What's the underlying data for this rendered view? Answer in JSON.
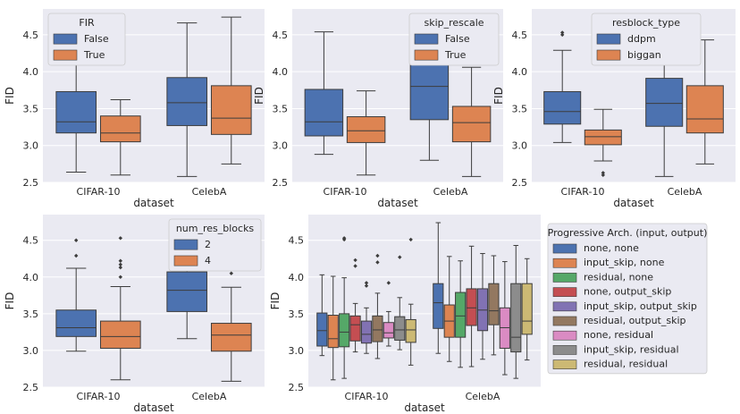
{
  "colors": {
    "blue": "#4c72b0",
    "orange": "#dd8452",
    "green": "#55a868",
    "red": "#c44e52",
    "purple": "#8172b3",
    "brown": "#937860",
    "pink": "#da8bc3",
    "gray": "#8c8c8c",
    "olive": "#ccb974"
  },
  "chart_data": [
    {
      "type": "box",
      "xlabel": "dataset",
      "ylabel": "FID",
      "ylim": [
        2.5,
        4.85
      ],
      "yticks": [
        "2.5",
        "3.0",
        "3.5",
        "4.0",
        "4.5"
      ],
      "categories": [
        "CIFAR-10",
        "CelebA"
      ],
      "legend": {
        "title": "FIR",
        "placement": "upper-left"
      },
      "series": [
        {
          "name": "False",
          "color": "blue",
          "boxes": [
            {
              "whislo": 2.64,
              "q1": 3.17,
              "med": 3.32,
              "q3": 3.73,
              "whishi": 4.64,
              "fliers": []
            },
            {
              "whislo": 2.58,
              "q1": 3.27,
              "med": 3.58,
              "q3": 3.92,
              "whishi": 4.66,
              "fliers": []
            }
          ]
        },
        {
          "name": "True",
          "color": "orange",
          "boxes": [
            {
              "whislo": 2.6,
              "q1": 3.05,
              "med": 3.17,
              "q3": 3.4,
              "whishi": 3.62,
              "fliers": [
                4.17
              ]
            },
            {
              "whislo": 2.75,
              "q1": 3.15,
              "med": 3.37,
              "q3": 3.81,
              "whishi": 4.74,
              "fliers": []
            }
          ]
        }
      ]
    },
    {
      "type": "box",
      "xlabel": "dataset",
      "ylabel": "FID",
      "ylim": [
        2.5,
        4.85
      ],
      "yticks": [
        "2.5",
        "3.0",
        "3.5",
        "4.0",
        "4.5"
      ],
      "categories": [
        "CIFAR-10",
        "CelebA"
      ],
      "legend": {
        "title": "skip_rescale",
        "placement": "upper-right"
      },
      "series": [
        {
          "name": "False",
          "color": "blue",
          "boxes": [
            {
              "whislo": 2.88,
              "q1": 3.13,
              "med": 3.32,
              "q3": 3.76,
              "whishi": 4.54,
              "fliers": []
            },
            {
              "whislo": 2.8,
              "q1": 3.35,
              "med": 3.8,
              "q3": 4.1,
              "whishi": 4.74,
              "fliers": []
            }
          ]
        },
        {
          "name": "True",
          "color": "orange",
          "boxes": [
            {
              "whislo": 2.6,
              "q1": 3.04,
              "med": 3.2,
              "q3": 3.39,
              "whishi": 3.74,
              "fliers": []
            },
            {
              "whislo": 2.58,
              "q1": 3.05,
              "med": 3.31,
              "q3": 3.53,
              "whishi": 4.06,
              "fliers": []
            }
          ]
        }
      ]
    },
    {
      "type": "box",
      "xlabel": "dataset",
      "ylabel": "FID",
      "ylim": [
        2.5,
        4.85
      ],
      "yticks": [
        "2.5",
        "3.0",
        "3.5",
        "4.0",
        "4.5"
      ],
      "categories": [
        "CIFAR-10",
        "CelebA"
      ],
      "legend": {
        "title": "resblock_type",
        "placement": "upper-right"
      },
      "series": [
        {
          "name": "ddpm",
          "color": "blue",
          "boxes": [
            {
              "whislo": 3.04,
              "q1": 3.29,
              "med": 3.46,
              "q3": 3.73,
              "whishi": 4.29,
              "fliers": [
                4.5,
                4.53
              ]
            },
            {
              "whislo": 2.58,
              "q1": 3.26,
              "med": 3.57,
              "q3": 3.91,
              "whishi": 4.63,
              "fliers": []
            }
          ]
        },
        {
          "name": "biggan",
          "color": "orange",
          "boxes": [
            {
              "whislo": 2.79,
              "q1": 3.01,
              "med": 3.12,
              "q3": 3.21,
              "whishi": 3.49,
              "fliers": [
                2.6,
                2.63
              ]
            },
            {
              "whislo": 2.75,
              "q1": 3.17,
              "med": 3.36,
              "q3": 3.81,
              "whishi": 4.43,
              "fliers": []
            }
          ]
        }
      ]
    },
    {
      "type": "box",
      "xlabel": "dataset",
      "ylabel": "FID",
      "ylim": [
        2.5,
        4.85
      ],
      "yticks": [
        "2.5",
        "3.0",
        "3.5",
        "4.0",
        "4.5"
      ],
      "categories": [
        "CIFAR-10",
        "CelebA"
      ],
      "legend": {
        "title": "num_res_blocks",
        "placement": "upper-right"
      },
      "series": [
        {
          "name": "2",
          "color": "blue",
          "boxes": [
            {
              "whislo": 2.99,
              "q1": 3.19,
              "med": 3.31,
              "q3": 3.55,
              "whishi": 4.12,
              "fliers": [
                4.29,
                4.5
              ]
            },
            {
              "whislo": 3.16,
              "q1": 3.53,
              "med": 3.82,
              "q3": 4.07,
              "whishi": 4.67,
              "fliers": []
            }
          ]
        },
        {
          "name": "4",
          "color": "orange",
          "boxes": [
            {
              "whislo": 2.6,
              "q1": 3.03,
              "med": 3.19,
              "q3": 3.4,
              "whishi": 3.87,
              "fliers": [
                4.0,
                4.13,
                4.17,
                4.22,
                4.53
              ]
            },
            {
              "whislo": 2.58,
              "q1": 2.99,
              "med": 3.21,
              "q3": 3.37,
              "whishi": 3.86,
              "fliers": [
                4.05
              ]
            }
          ]
        }
      ]
    },
    {
      "type": "box",
      "xlabel": "dataset",
      "ylabel": "FID",
      "ylim": [
        2.5,
        4.85
      ],
      "yticks": [
        "2.5",
        "3.0",
        "3.5",
        "4.0",
        "4.5"
      ],
      "categories": [
        "CIFAR-10",
        "CelebA"
      ],
      "legend": {
        "title": "Progressive Arch. (input, output)",
        "placement": "outside-right"
      },
      "series": [
        {
          "name": "none, none",
          "color": "blue",
          "boxes": [
            {
              "whislo": 2.93,
              "q1": 3.06,
              "med": 3.27,
              "q3": 3.51,
              "whishi": 4.03,
              "fliers": []
            },
            {
              "whislo": 2.96,
              "q1": 3.3,
              "med": 3.65,
              "q3": 3.91,
              "whishi": 4.74,
              "fliers": []
            }
          ]
        },
        {
          "name": "input_skip, none",
          "color": "orange",
          "boxes": [
            {
              "whislo": 2.6,
              "q1": 3.04,
              "med": 3.16,
              "q3": 3.48,
              "whishi": 4.01,
              "fliers": []
            },
            {
              "whislo": 2.85,
              "q1": 3.18,
              "med": 3.4,
              "q3": 3.62,
              "whishi": 4.28,
              "fliers": []
            }
          ]
        },
        {
          "name": "residual, none",
          "color": "green",
          "boxes": [
            {
              "whislo": 2.62,
              "q1": 3.05,
              "med": 3.25,
              "q3": 3.5,
              "whishi": 3.99,
              "fliers": [
                4.51,
                4.53
              ]
            },
            {
              "whislo": 2.77,
              "q1": 3.18,
              "med": 3.47,
              "q3": 3.79,
              "whishi": 4.22,
              "fliers": []
            }
          ]
        },
        {
          "name": "none, output_skip",
          "color": "red",
          "boxes": [
            {
              "whislo": 2.98,
              "q1": 3.13,
              "med": 3.35,
              "q3": 3.47,
              "whishi": 3.64,
              "fliers": [
                4.15,
                4.23
              ]
            },
            {
              "whislo": 2.78,
              "q1": 3.34,
              "med": 3.58,
              "q3": 3.84,
              "whishi": 4.42,
              "fliers": []
            }
          ]
        },
        {
          "name": "input_skip, output_skip",
          "color": "purple",
          "boxes": [
            {
              "whislo": 2.96,
              "q1": 3.1,
              "med": 3.22,
              "q3": 3.4,
              "whishi": 3.58,
              "fliers": [
                3.88,
                3.92
              ]
            },
            {
              "whislo": 2.88,
              "q1": 3.27,
              "med": 3.55,
              "q3": 3.84,
              "whishi": 4.32,
              "fliers": []
            }
          ]
        },
        {
          "name": "residual, output_skip",
          "color": "brown",
          "boxes": [
            {
              "whislo": 2.89,
              "q1": 3.12,
              "med": 3.28,
              "q3": 3.47,
              "whishi": 3.78,
              "fliers": [
                4.2,
                4.29
              ]
            },
            {
              "whislo": 2.94,
              "q1": 3.35,
              "med": 3.54,
              "q3": 3.91,
              "whishi": 4.29,
              "fliers": []
            }
          ]
        },
        {
          "name": "none, residual",
          "color": "pink",
          "boxes": [
            {
              "whislo": 3.06,
              "q1": 3.17,
              "med": 3.24,
              "q3": 3.38,
              "whishi": 3.53,
              "fliers": [
                3.92
              ]
            },
            {
              "whislo": 2.67,
              "q1": 3.03,
              "med": 3.31,
              "q3": 3.58,
              "whishi": 4.21,
              "fliers": []
            }
          ]
        },
        {
          "name": "input_skip, residual",
          "color": "gray",
          "boxes": [
            {
              "whislo": 3.01,
              "q1": 3.14,
              "med": 3.28,
              "q3": 3.46,
              "whishi": 3.72,
              "fliers": [
                4.27
              ]
            },
            {
              "whislo": 2.62,
              "q1": 2.98,
              "med": 3.18,
              "q3": 3.91,
              "whishi": 4.43,
              "fliers": []
            }
          ]
        },
        {
          "name": "residual, residual",
          "color": "olive",
          "boxes": [
            {
              "whislo": 2.8,
              "q1": 3.11,
              "med": 3.28,
              "q3": 3.42,
              "whishi": 3.63,
              "fliers": [
                4.51
              ]
            },
            {
              "whislo": 2.87,
              "q1": 3.22,
              "med": 3.4,
              "q3": 3.91,
              "whishi": 4.25,
              "fliers": []
            }
          ]
        }
      ]
    }
  ]
}
